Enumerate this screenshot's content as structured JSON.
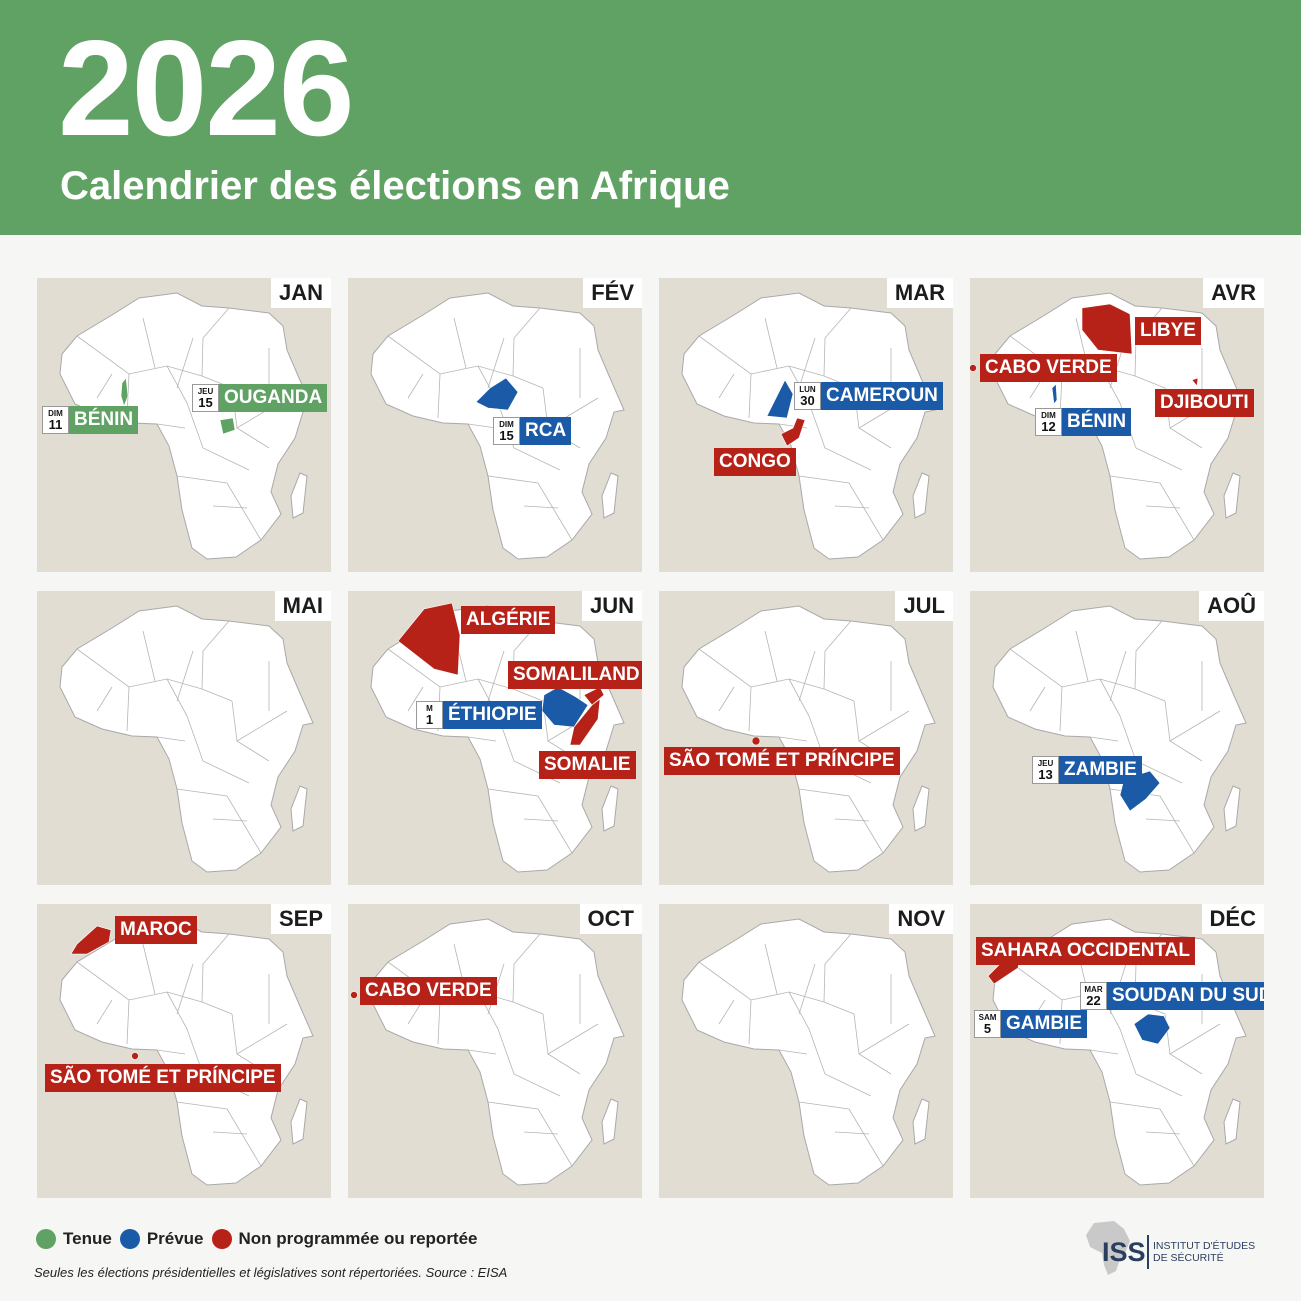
{
  "header": {
    "year": "2026",
    "subtitle": "Calendrier des élections en Afrique"
  },
  "colors": {
    "tenue": "#5fa264",
    "prevue": "#1a5aa6",
    "non_programmee": "#b62218"
  },
  "months": [
    {
      "month": "JAN",
      "tags": [
        {
          "dow": "DIM",
          "day": "11",
          "name": "BÉNIN",
          "status": "green"
        },
        {
          "dow": "JEU",
          "day": "15",
          "name": "OUGANDA",
          "status": "green"
        }
      ]
    },
    {
      "month": "FÉV",
      "tags": [
        {
          "dow": "DIM",
          "day": "15",
          "name": "RCA",
          "status": "blue"
        }
      ]
    },
    {
      "month": "MAR",
      "tags": [
        {
          "dow": "LUN",
          "day": "30",
          "name": "CAMEROUN",
          "status": "blue"
        },
        {
          "name": "CONGO",
          "status": "red"
        }
      ]
    },
    {
      "month": "AVR",
      "tags": [
        {
          "name": "LIBYE",
          "status": "red"
        },
        {
          "name": "CABO VERDE",
          "status": "red"
        },
        {
          "dow": "DIM",
          "day": "12",
          "name": "BÉNIN",
          "status": "blue"
        },
        {
          "name": "DJIBOUTI",
          "status": "red"
        }
      ]
    },
    {
      "month": "MAI",
      "tags": []
    },
    {
      "month": "JUN",
      "tags": [
        {
          "name": "ALGÉRIE",
          "status": "red"
        },
        {
          "name": "SOMALILAND",
          "status": "red"
        },
        {
          "dow": "M",
          "day": "1",
          "name": "ÉTHIOPIE",
          "status": "blue"
        },
        {
          "name": "SOMALIE",
          "status": "red"
        }
      ]
    },
    {
      "month": "JUL",
      "tags": [
        {
          "name": "SÃO TOMÉ ET PRÍNCIPE",
          "status": "red"
        }
      ]
    },
    {
      "month": "AOÛ",
      "tags": [
        {
          "dow": "JEU",
          "day": "13",
          "name": "ZAMBIE",
          "status": "blue"
        }
      ]
    },
    {
      "month": "SEP",
      "tags": [
        {
          "name": "MAROC",
          "status": "red"
        },
        {
          "name": "SÃO TOMÉ ET PRÍNCIPE",
          "status": "red"
        }
      ]
    },
    {
      "month": "OCT",
      "tags": [
        {
          "name": "CABO VERDE",
          "status": "red"
        }
      ]
    },
    {
      "month": "NOV",
      "tags": []
    },
    {
      "month": "DÉC",
      "tags": [
        {
          "name": "SAHARA OCCIDENTAL",
          "status": "red"
        },
        {
          "dow": "MAR",
          "day": "22",
          "name": "SOUDAN DU SUD",
          "status": "blue"
        },
        {
          "dow": "SAM",
          "day": "5",
          "name": "GAMBIE",
          "status": "blue"
        }
      ]
    }
  ],
  "legend": [
    {
      "label": "Tenue",
      "color": "#5fa264"
    },
    {
      "label": "Prévue",
      "color": "#1a5aa6"
    },
    {
      "label": "Non programmée ou reportée",
      "color": "#b62218"
    }
  ],
  "note": "Seules les élections présidentielles et législatives sont répertoriées. Source : EISA",
  "logo": {
    "acronym": "ISS",
    "line1": "Institut d'Études",
    "line2": "de Sécurité"
  }
}
